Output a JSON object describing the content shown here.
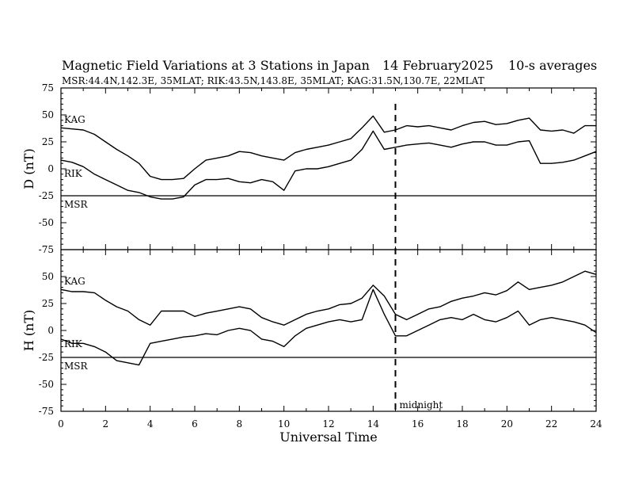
{
  "header": {
    "title": "Magnetic Field Variations at 3 Stations in Japan",
    "date": "14 February2025",
    "averaging": "10-s averages",
    "stations_line": "MSR:44.4N,142.3E, 35MLAT;  RIK:43.5N,143.8E, 35MLAT;  KAG:31.5N,130.7E, 22MLAT"
  },
  "annotation": {
    "midnight_label": "midnight",
    "midnight_ut": 15
  },
  "chart_data": [
    {
      "type": "line",
      "ylabel": "D (nT)",
      "xlabel": "",
      "xlim": [
        0,
        24
      ],
      "ylim": [
        -75,
        75
      ],
      "yticks": [
        -75,
        -50,
        -25,
        0,
        25,
        50,
        75
      ],
      "xticks": [
        0,
        2,
        4,
        6,
        8,
        10,
        12,
        14,
        16,
        18,
        20,
        22,
        24
      ],
      "grid": false,
      "x": [
        0,
        0.5,
        1,
        1.5,
        2,
        2.5,
        3,
        3.5,
        4,
        4.5,
        5,
        5.5,
        6,
        6.5,
        7,
        7.5,
        8,
        8.5,
        9,
        9.5,
        10,
        10.5,
        11,
        11.5,
        12,
        12.5,
        13,
        13.5,
        14,
        14.5,
        15,
        15.5,
        16,
        16.5,
        17,
        17.5,
        18,
        18.5,
        19,
        19.5,
        20,
        20.5,
        21,
        21.5,
        22,
        22.5,
        23,
        23.5,
        24
      ],
      "series": [
        {
          "name": "KAG",
          "values": [
            38,
            37,
            36,
            32,
            25,
            18,
            12,
            5,
            -7,
            -10,
            -10,
            -9,
            0,
            8,
            10,
            12,
            16,
            15,
            12,
            10,
            8,
            15,
            18,
            20,
            22,
            25,
            28,
            38,
            49,
            34,
            36,
            40,
            39,
            40,
            38,
            36,
            40,
            43,
            44,
            41,
            42,
            45,
            47,
            36,
            35,
            36,
            33,
            40,
            40
          ]
        },
        {
          "name": "RIK",
          "values": [
            8,
            6,
            2,
            -5,
            -10,
            -15,
            -20,
            -22,
            -26,
            -28,
            -28,
            -26,
            -15,
            -10,
            -10,
            -9,
            -12,
            -13,
            -10,
            -12,
            -20,
            -2,
            0,
            0,
            2,
            5,
            8,
            18,
            35,
            18,
            20,
            22,
            23,
            24,
            22,
            20,
            23,
            25,
            25,
            22,
            22,
            25,
            26,
            5,
            5,
            6,
            8,
            12,
            16
          ]
        },
        {
          "name": "MSR",
          "values": [
            -25,
            -25,
            -25,
            -25,
            -25,
            -25,
            -25,
            -25,
            -25,
            -25,
            -25,
            -25,
            -25,
            -25,
            -25,
            -25,
            -25,
            -25,
            -25,
            -25,
            -25,
            -25,
            -25,
            -25,
            -25,
            -25,
            -25,
            -25,
            -25,
            -25,
            -25,
            -25,
            -25,
            -25,
            -25,
            -25,
            -25,
            -25,
            -25,
            -25,
            -25,
            -25,
            -25,
            -25,
            -25,
            -25,
            -25,
            -25,
            -25
          ]
        }
      ]
    },
    {
      "type": "line",
      "ylabel": "H (nT)",
      "xlabel": "Universal Time",
      "xlim": [
        0,
        24
      ],
      "ylim": [
        -75,
        75
      ],
      "yticks": [
        -75,
        -50,
        -25,
        0,
        25,
        50
      ],
      "xticks": [
        0,
        2,
        4,
        6,
        8,
        10,
        12,
        14,
        16,
        18,
        20,
        22,
        24
      ],
      "grid": false,
      "x": [
        0,
        0.5,
        1,
        1.5,
        2,
        2.5,
        3,
        3.5,
        4,
        4.5,
        5,
        5.5,
        6,
        6.5,
        7,
        7.5,
        8,
        8.5,
        9,
        9.5,
        10,
        10.5,
        11,
        11.5,
        12,
        12.5,
        13,
        13.5,
        14,
        14.5,
        15,
        15.5,
        16,
        16.5,
        17,
        17.5,
        18,
        18.5,
        19,
        19.5,
        20,
        20.5,
        21,
        21.5,
        22,
        22.5,
        23,
        23.5,
        24
      ],
      "series": [
        {
          "name": "KAG",
          "values": [
            38,
            36,
            36,
            35,
            28,
            22,
            18,
            10,
            5,
            18,
            18,
            18,
            13,
            16,
            18,
            20,
            22,
            20,
            12,
            8,
            5,
            10,
            15,
            18,
            20,
            24,
            25,
            30,
            42,
            32,
            15,
            10,
            15,
            20,
            22,
            27,
            30,
            32,
            35,
            33,
            37,
            45,
            38,
            40,
            42,
            45,
            50,
            55,
            52
          ]
        },
        {
          "name": "RIK",
          "values": [
            -8,
            -12,
            -12,
            -15,
            -20,
            -28,
            -30,
            -32,
            -12,
            -10,
            -8,
            -6,
            -5,
            -3,
            -4,
            0,
            2,
            0,
            -8,
            -10,
            -15,
            -5,
            2,
            5,
            8,
            10,
            8,
            10,
            38,
            15,
            -5,
            -5,
            0,
            5,
            10,
            12,
            10,
            15,
            10,
            8,
            12,
            18,
            5,
            10,
            12,
            10,
            8,
            5,
            -2
          ]
        },
        {
          "name": "MSR",
          "values": [
            -25,
            -25,
            -25,
            -25,
            -25,
            -25,
            -25,
            -25,
            -25,
            -25,
            -25,
            -25,
            -25,
            -25,
            -25,
            -25,
            -25,
            -25,
            -25,
            -25,
            -25,
            -25,
            -25,
            -25,
            -25,
            -25,
            -25,
            -25,
            -25,
            -25,
            -25,
            -25,
            -25,
            -25,
            -25,
            -25,
            -25,
            -25,
            -25,
            -25,
            -25,
            -25,
            -25,
            -25,
            -25,
            -25,
            -25,
            -25,
            -25
          ]
        }
      ]
    }
  ]
}
